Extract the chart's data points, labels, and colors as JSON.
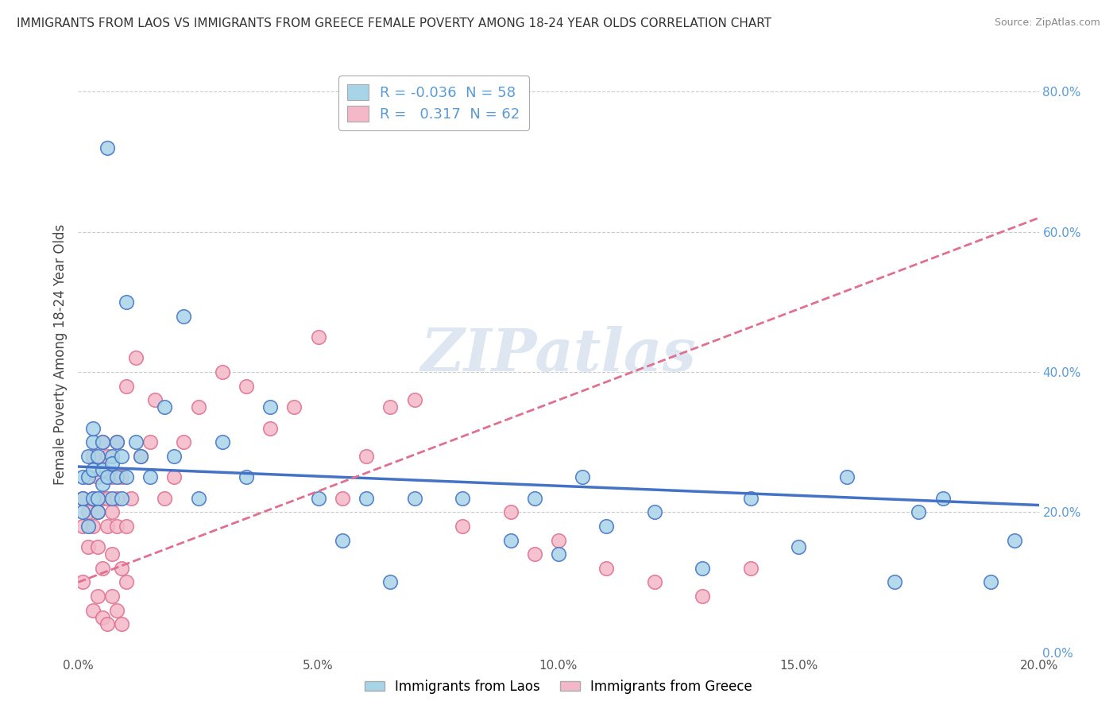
{
  "title": "IMMIGRANTS FROM LAOS VS IMMIGRANTS FROM GREECE FEMALE POVERTY AMONG 18-24 YEAR OLDS CORRELATION CHART",
  "source": "Source: ZipAtlas.com",
  "ylabel": "Female Poverty Among 18-24 Year Olds",
  "x_min": 0.0,
  "x_max": 0.2,
  "y_min": 0.0,
  "y_max": 0.85,
  "yticks": [
    0.0,
    0.2,
    0.4,
    0.6,
    0.8
  ],
  "xticks": [
    0.0,
    0.05,
    0.1,
    0.15,
    0.2
  ],
  "legend_laos": "Immigrants from Laos",
  "legend_greece": "Immigrants from Greece",
  "R_laos": -0.036,
  "N_laos": 58,
  "R_greece": 0.317,
  "N_greece": 62,
  "color_laos": "#a8d4e8",
  "color_greece": "#f4b8c8",
  "color_laos_line": "#4472c4",
  "color_greece_line": "#e07090",
  "watermark": "ZIPatlas",
  "background_color": "#ffffff",
  "laos_x": [
    0.001,
    0.001,
    0.001,
    0.002,
    0.002,
    0.002,
    0.003,
    0.003,
    0.003,
    0.003,
    0.004,
    0.004,
    0.004,
    0.005,
    0.005,
    0.005,
    0.006,
    0.006,
    0.007,
    0.007,
    0.007,
    0.008,
    0.008,
    0.009,
    0.009,
    0.01,
    0.01,
    0.012,
    0.013,
    0.015,
    0.018,
    0.02,
    0.022,
    0.025,
    0.03,
    0.035,
    0.04,
    0.05,
    0.055,
    0.06,
    0.065,
    0.07,
    0.08,
    0.09,
    0.095,
    0.1,
    0.105,
    0.11,
    0.12,
    0.13,
    0.14,
    0.15,
    0.16,
    0.17,
    0.175,
    0.18,
    0.19,
    0.195
  ],
  "laos_y": [
    0.25,
    0.22,
    0.2,
    0.28,
    0.25,
    0.18,
    0.3,
    0.26,
    0.22,
    0.32,
    0.28,
    0.22,
    0.2,
    0.3,
    0.24,
    0.26,
    0.25,
    0.72,
    0.28,
    0.22,
    0.27,
    0.25,
    0.3,
    0.28,
    0.22,
    0.5,
    0.25,
    0.3,
    0.28,
    0.25,
    0.35,
    0.28,
    0.48,
    0.22,
    0.3,
    0.25,
    0.35,
    0.22,
    0.16,
    0.22,
    0.1,
    0.22,
    0.22,
    0.16,
    0.22,
    0.14,
    0.25,
    0.18,
    0.2,
    0.12,
    0.22,
    0.15,
    0.25,
    0.1,
    0.2,
    0.22,
    0.1,
    0.16
  ],
  "greece_x": [
    0.001,
    0.001,
    0.001,
    0.002,
    0.002,
    0.002,
    0.003,
    0.003,
    0.003,
    0.004,
    0.004,
    0.004,
    0.005,
    0.005,
    0.005,
    0.006,
    0.006,
    0.006,
    0.007,
    0.007,
    0.007,
    0.008,
    0.008,
    0.008,
    0.009,
    0.009,
    0.01,
    0.01,
    0.011,
    0.012,
    0.013,
    0.015,
    0.016,
    0.018,
    0.02,
    0.022,
    0.025,
    0.03,
    0.035,
    0.04,
    0.045,
    0.05,
    0.055,
    0.06,
    0.065,
    0.07,
    0.08,
    0.09,
    0.095,
    0.1,
    0.11,
    0.12,
    0.13,
    0.14,
    0.003,
    0.004,
    0.005,
    0.006,
    0.007,
    0.008,
    0.009,
    0.01
  ],
  "greece_y": [
    0.18,
    0.22,
    0.1,
    0.25,
    0.2,
    0.15,
    0.28,
    0.22,
    0.18,
    0.25,
    0.2,
    0.15,
    0.3,
    0.22,
    0.12,
    0.28,
    0.18,
    0.22,
    0.25,
    0.2,
    0.14,
    0.3,
    0.22,
    0.18,
    0.25,
    0.12,
    0.38,
    0.18,
    0.22,
    0.42,
    0.28,
    0.3,
    0.36,
    0.22,
    0.25,
    0.3,
    0.35,
    0.4,
    0.38,
    0.32,
    0.35,
    0.45,
    0.22,
    0.28,
    0.35,
    0.36,
    0.18,
    0.2,
    0.14,
    0.16,
    0.12,
    0.1,
    0.08,
    0.12,
    0.06,
    0.08,
    0.05,
    0.04,
    0.08,
    0.06,
    0.04,
    0.1
  ],
  "laos_trend_x0": 0.0,
  "laos_trend_x1": 0.2,
  "laos_trend_y0": 0.265,
  "laos_trend_y1": 0.21,
  "greece_trend_x0": 0.0,
  "greece_trend_x1": 0.2,
  "greece_trend_y0": 0.1,
  "greece_trend_y1": 0.62
}
